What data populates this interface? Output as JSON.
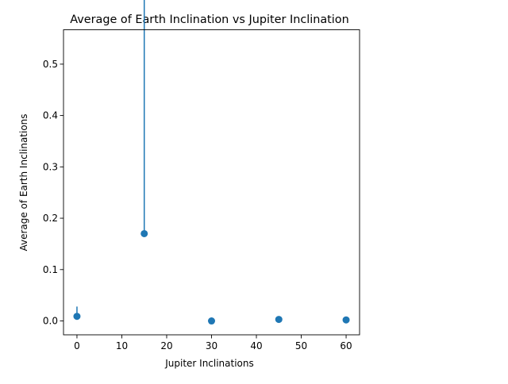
{
  "chart_data": {
    "type": "scatter",
    "title": "Average of Earth Inclination vs Jupiter Inclination",
    "xlabel": "Jupiter Inclinations",
    "ylabel": "Average of Earth Inclinations",
    "xlim": [
      -3,
      63
    ],
    "ylim": [
      -0.027,
      0.567
    ],
    "x_ticks": [
      0,
      10,
      20,
      30,
      40,
      50,
      60
    ],
    "y_ticks": [
      0.0,
      0.1,
      0.2,
      0.3,
      0.4,
      0.5
    ],
    "y_tick_labels": [
      "0.0",
      "0.1",
      "0.2",
      "0.3",
      "0.4",
      "0.5"
    ],
    "grid": false,
    "points": [
      {
        "x": 0,
        "y": 0.009,
        "err_low": 0.0,
        "err_high": 0.019
      },
      {
        "x": 15,
        "y": 0.17,
        "err_low": 0.0,
        "err_high": 0.54
      },
      {
        "x": 30,
        "y": 0.0,
        "err_low": 0.0,
        "err_high": 0.0
      },
      {
        "x": 45,
        "y": 0.003,
        "err_low": 0.003,
        "err_high": 0.003
      },
      {
        "x": 60,
        "y": 0.002,
        "err_low": 0.002,
        "err_high": 0.002
      }
    ],
    "marker_color": "#1f77b4",
    "errorbar_color": "#1f77b4"
  }
}
